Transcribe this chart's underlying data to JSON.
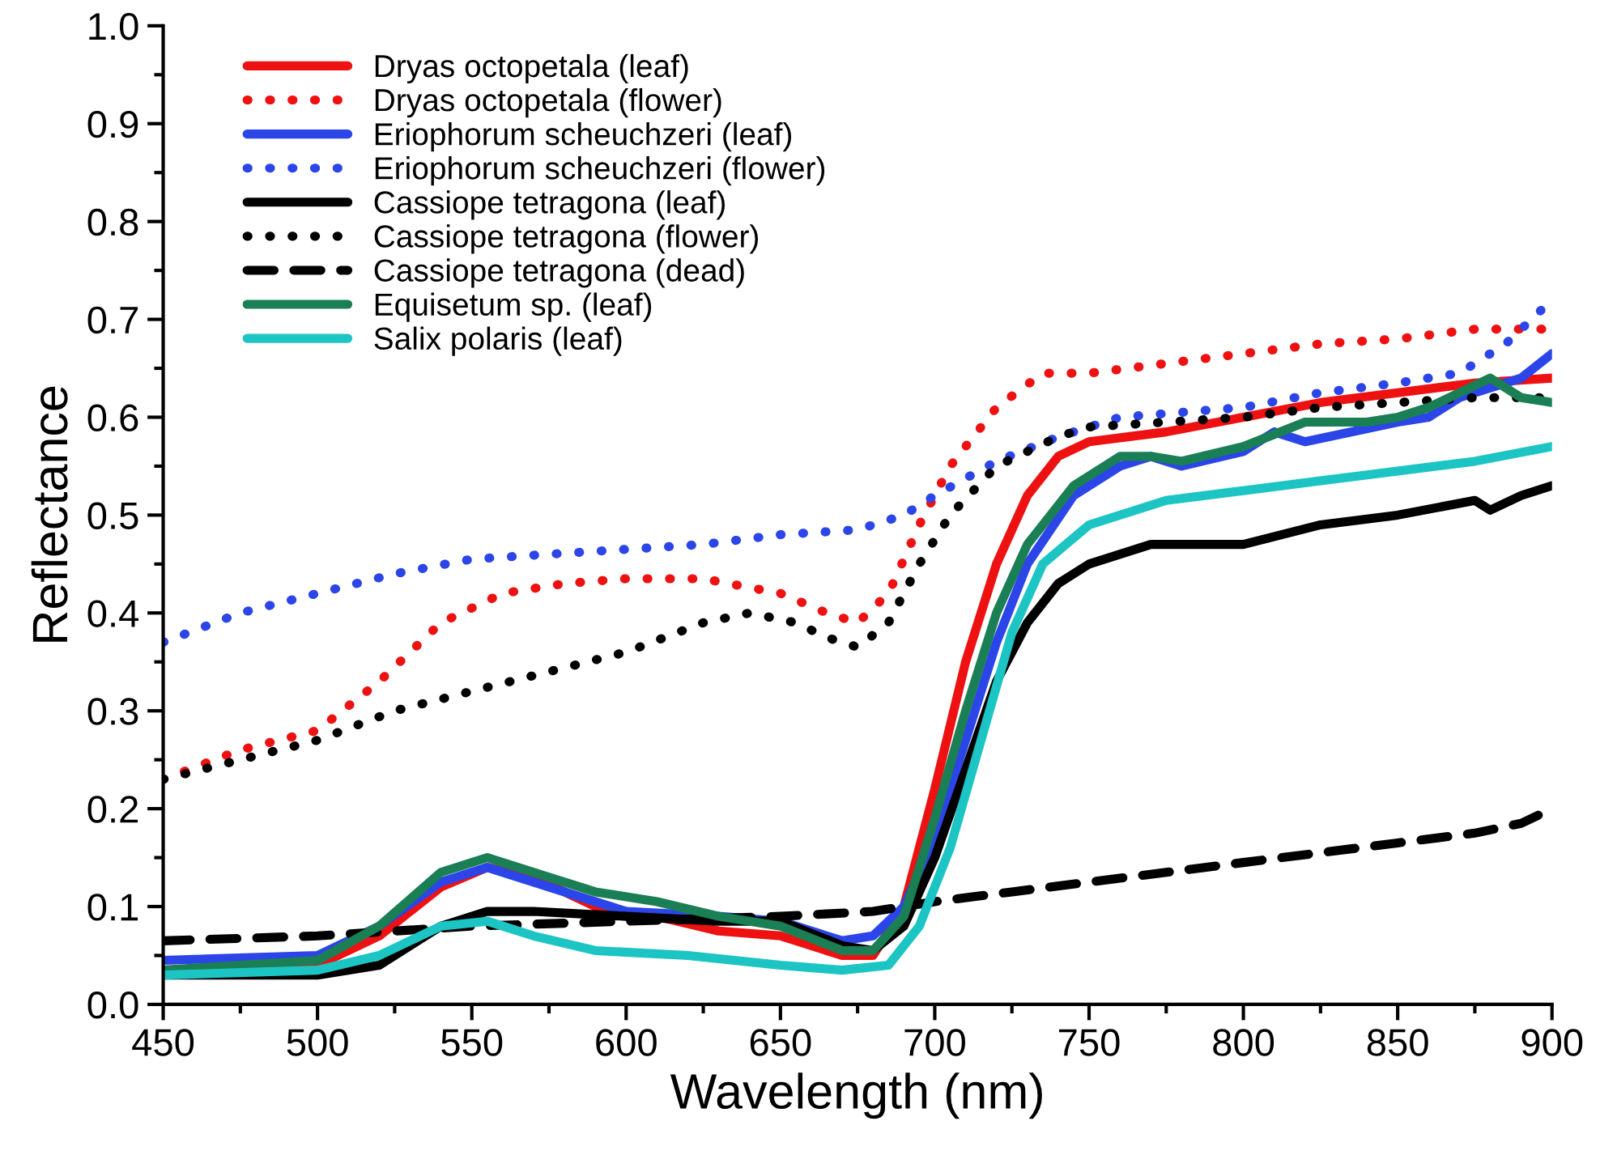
{
  "chart_data": {
    "type": "line",
    "xlabel": "Wavelength (nm)",
    "ylabel": "Reflectance",
    "xlim": [
      450,
      900
    ],
    "ylim": [
      0,
      1
    ],
    "xticks": [
      450,
      {
        "value": 475,
        "label": null
      },
      500,
      {
        "value": 525,
        "label": null
      },
      550,
      {
        "value": 575,
        "label": null
      },
      600,
      {
        "value": 625,
        "label": null
      },
      650,
      {
        "value": 675,
        "label": null
      },
      700,
      {
        "value": 725,
        "label": null
      },
      750,
      {
        "value": 775,
        "label": null
      },
      800,
      {
        "value": 825,
        "label": null
      },
      850,
      {
        "value": 875,
        "label": null
      },
      900
    ],
    "yticks": [
      {
        "value": 0,
        "label": "0.0"
      },
      {
        "value": 0.05,
        "label": null
      },
      0.1,
      {
        "value": 0.15,
        "label": null
      },
      0.2,
      {
        "value": 0.25,
        "label": null
      },
      0.3,
      {
        "value": 0.35,
        "label": null
      },
      0.4,
      {
        "value": 0.45,
        "label": null
      },
      0.5,
      {
        "value": 0.55,
        "label": null
      },
      0.6,
      {
        "value": 0.65,
        "label": null
      },
      0.7,
      {
        "value": 0.75,
        "label": null
      },
      0.8,
      {
        "value": 0.85,
        "label": null
      },
      0.9,
      {
        "value": 0.95,
        "label": null
      },
      {
        "value": 1,
        "label": "1.0"
      }
    ],
    "grid": false,
    "legend": "top left",
    "marker": "none",
    "series": [
      {
        "name": "Dryas octopetala (leaf)",
        "color": "#ee1111",
        "line_style": "solid",
        "x": [
          450,
          500,
          520,
          540,
          555,
          570,
          590,
          610,
          630,
          650,
          670,
          680,
          690,
          700,
          710,
          720,
          730,
          740,
          750,
          775,
          800,
          825,
          850,
          875,
          900
        ],
        "values": [
          0.035,
          0.04,
          0.07,
          0.12,
          0.14,
          0.13,
          0.1,
          0.09,
          0.075,
          0.07,
          0.05,
          0.05,
          0.1,
          0.22,
          0.35,
          0.45,
          0.52,
          0.56,
          0.575,
          0.585,
          0.6,
          0.615,
          0.625,
          0.635,
          0.64
        ]
      },
      {
        "name": "Dryas octopetala (flower)",
        "color": "#ee1111",
        "line_style": "dotted",
        "x": [
          450,
          475,
          500,
          520,
          540,
          560,
          580,
          600,
          625,
          650,
          665,
          675,
          685,
          695,
          705,
          720,
          735,
          750,
          775,
          800,
          825,
          850,
          875,
          900
        ],
        "values": [
          0.23,
          0.26,
          0.28,
          0.33,
          0.39,
          0.42,
          0.43,
          0.435,
          0.435,
          0.42,
          0.4,
          0.39,
          0.42,
          0.49,
          0.55,
          0.61,
          0.645,
          0.645,
          0.655,
          0.665,
          0.675,
          0.68,
          0.69,
          0.69
        ]
      },
      {
        "name": "Eriophorum scheuchzeri (leaf)",
        "color": "#2b45e8",
        "line_style": "solid",
        "x": [
          450,
          500,
          520,
          540,
          555,
          575,
          600,
          630,
          650,
          670,
          680,
          690,
          700,
          710,
          720,
          730,
          745,
          760,
          770,
          780,
          800,
          810,
          820,
          850,
          860,
          870,
          890,
          900
        ],
        "values": [
          0.045,
          0.05,
          0.08,
          0.125,
          0.14,
          0.12,
          0.095,
          0.09,
          0.085,
          0.065,
          0.07,
          0.1,
          0.17,
          0.27,
          0.37,
          0.45,
          0.52,
          0.55,
          0.56,
          0.55,
          0.565,
          0.585,
          0.575,
          0.595,
          0.6,
          0.62,
          0.64,
          0.665
        ]
      },
      {
        "name": "Eriophorum scheuchzeri (flower)",
        "color": "#2b45e8",
        "line_style": "dotted",
        "x": [
          450,
          475,
          500,
          525,
          550,
          575,
          600,
          625,
          650,
          675,
          690,
          700,
          720,
          740,
          760,
          780,
          800,
          825,
          850,
          870,
          885,
          900
        ],
        "values": [
          0.37,
          0.4,
          0.42,
          0.44,
          0.455,
          0.46,
          0.465,
          0.47,
          0.48,
          0.485,
          0.5,
          0.52,
          0.555,
          0.58,
          0.6,
          0.605,
          0.61,
          0.625,
          0.635,
          0.645,
          0.675,
          0.72
        ]
      },
      {
        "name": "Cassiope tetragona (leaf)",
        "color": "#000000",
        "line_style": "solid",
        "x": [
          450,
          500,
          520,
          540,
          555,
          570,
          600,
          630,
          650,
          670,
          680,
          690,
          700,
          710,
          720,
          730,
          740,
          750,
          770,
          800,
          825,
          850,
          875,
          880,
          890,
          900
        ],
        "values": [
          0.03,
          0.03,
          0.04,
          0.08,
          0.095,
          0.095,
          0.09,
          0.085,
          0.085,
          0.06,
          0.055,
          0.08,
          0.15,
          0.24,
          0.33,
          0.39,
          0.43,
          0.45,
          0.47,
          0.47,
          0.49,
          0.5,
          0.515,
          0.505,
          0.52,
          0.53
        ]
      },
      {
        "name": "Cassiope tetragona (flower)",
        "color": "#000000",
        "line_style": "dotted",
        "x": [
          450,
          475,
          500,
          525,
          550,
          575,
          600,
          625,
          640,
          655,
          665,
          675,
          685,
          695,
          705,
          720,
          740,
          750,
          775,
          800,
          825,
          850,
          875,
          900
        ],
        "values": [
          0.23,
          0.25,
          0.27,
          0.3,
          0.32,
          0.34,
          0.36,
          0.39,
          0.4,
          0.39,
          0.375,
          0.365,
          0.39,
          0.45,
          0.5,
          0.55,
          0.58,
          0.59,
          0.595,
          0.6,
          0.61,
          0.615,
          0.62,
          0.62
        ]
      },
      {
        "name": "Cassiope tetragona (dead)",
        "color": "#000000",
        "line_style": "dashed",
        "x": [
          450,
          500,
          550,
          600,
          650,
          680,
          700,
          725,
          750,
          775,
          800,
          825,
          850,
          875,
          890,
          900
        ],
        "values": [
          0.065,
          0.07,
          0.08,
          0.085,
          0.09,
          0.095,
          0.105,
          0.115,
          0.125,
          0.135,
          0.145,
          0.155,
          0.165,
          0.175,
          0.185,
          0.2
        ]
      },
      {
        "name": "Equisetum sp. (leaf)",
        "color": "#1a7f55",
        "line_style": "solid",
        "x": [
          450,
          500,
          520,
          540,
          555,
          575,
          590,
          610,
          630,
          650,
          670,
          680,
          690,
          700,
          710,
          720,
          730,
          745,
          760,
          770,
          780,
          800,
          820,
          840,
          850,
          860,
          870,
          880,
          890,
          900
        ],
        "values": [
          0.035,
          0.045,
          0.08,
          0.135,
          0.15,
          0.13,
          0.115,
          0.105,
          0.09,
          0.08,
          0.055,
          0.055,
          0.09,
          0.19,
          0.3,
          0.4,
          0.47,
          0.53,
          0.56,
          0.56,
          0.555,
          0.57,
          0.595,
          0.595,
          0.6,
          0.61,
          0.625,
          0.64,
          0.62,
          0.615
        ]
      },
      {
        "name": "Salix polaris (leaf)",
        "color": "#1cc4c4",
        "line_style": "solid",
        "x": [
          450,
          500,
          520,
          540,
          555,
          570,
          590,
          620,
          650,
          670,
          685,
          695,
          705,
          715,
          725,
          735,
          750,
          775,
          800,
          825,
          850,
          875,
          900
        ],
        "values": [
          0.03,
          0.035,
          0.05,
          0.08,
          0.085,
          0.07,
          0.055,
          0.05,
          0.04,
          0.035,
          0.04,
          0.08,
          0.16,
          0.27,
          0.38,
          0.45,
          0.49,
          0.515,
          0.525,
          0.535,
          0.545,
          0.555,
          0.57
        ]
      }
    ]
  }
}
